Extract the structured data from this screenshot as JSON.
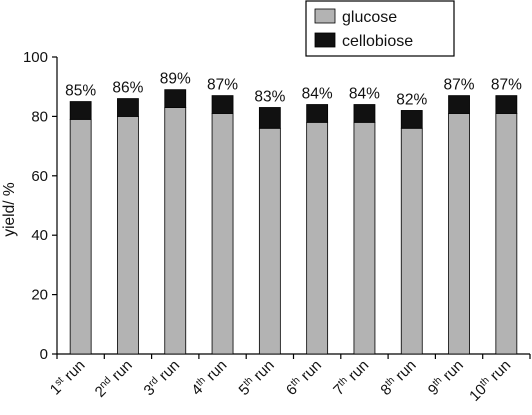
{
  "chart_data": {
    "type": "bar",
    "stacked": true,
    "categories": [
      {
        "num": "1",
        "sup": "st",
        "rest": " run"
      },
      {
        "num": "2",
        "sup": "nd",
        "rest": " run"
      },
      {
        "num": "3",
        "sup": "rd",
        "rest": " run"
      },
      {
        "num": "4",
        "sup": "th",
        "rest": " run"
      },
      {
        "num": "5",
        "sup": "th",
        "rest": " run"
      },
      {
        "num": "6",
        "sup": "th",
        "rest": " run"
      },
      {
        "num": "7",
        "sup": "th",
        "rest": " run"
      },
      {
        "num": "8",
        "sup": "th",
        "rest": " run"
      },
      {
        "num": "9",
        "sup": "th",
        "rest": " run"
      },
      {
        "num": "10",
        "sup": "th",
        "rest": " run"
      }
    ],
    "series": [
      {
        "name": "glucose",
        "color": "#b3b3b3",
        "values": [
          79,
          80,
          83,
          81,
          76,
          78,
          78,
          76,
          81,
          81
        ]
      },
      {
        "name": "cellobiose",
        "color": "#111111",
        "values": [
          6,
          6,
          6,
          6,
          7,
          6,
          6,
          6,
          6,
          6
        ]
      }
    ],
    "data_labels": [
      "85%",
      "86%",
      "89%",
      "87%",
      "83%",
      "84%",
      "84%",
      "82%",
      "87%",
      "87%"
    ],
    "ylabel": "yield/ %",
    "xlabel": "",
    "ylim": [
      0,
      100
    ],
    "yticks": [
      0,
      20,
      40,
      60,
      80,
      100
    ],
    "grid": false,
    "legend_position": "top-right"
  }
}
